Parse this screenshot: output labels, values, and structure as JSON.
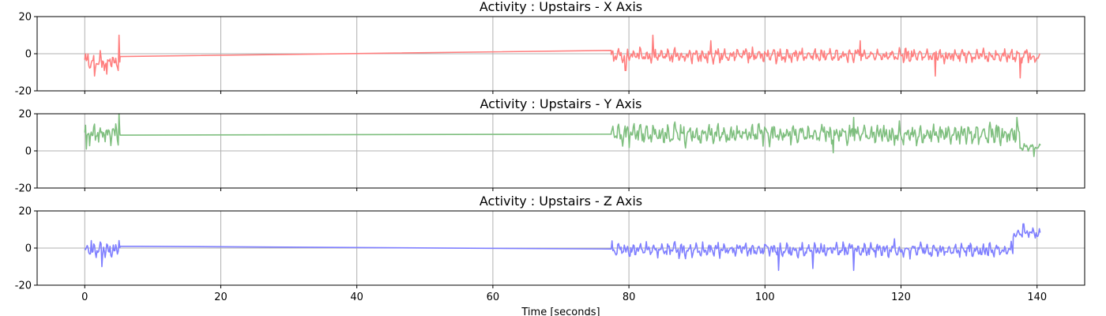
{
  "chart_data": [
    {
      "type": "line",
      "title": "Activity : Upstairs - X Axis",
      "xlabel": "",
      "ylabel": "",
      "xlim": [
        -7,
        147
      ],
      "ylim": [
        -20,
        20
      ],
      "xticks": [
        0,
        20,
        40,
        60,
        80,
        100,
        120,
        140
      ],
      "yticks": [
        -20,
        0,
        20
      ],
      "show_xtick_labels": false,
      "grid": true,
      "color": "#ff7f7f",
      "series": [
        {
          "segments": [
            {
              "x_start": 0,
              "x_end": 5.2,
              "center": -4,
              "amplitude": 6,
              "spikes": [
                [
                  5.0,
                  10
                ],
                [
                  3.2,
                  -11
                ],
                [
                  1.4,
                  -12
                ]
              ]
            },
            {
              "x_start": 5.2,
              "x_end": 77.4,
              "linear": [
                -1.5,
                1.8
              ]
            },
            {
              "x_start": 77.4,
              "x_end": 140.5,
              "center": -1,
              "amplitude": 4,
              "spikes": [
                [
                  83.5,
                  10
                ],
                [
                  92.0,
                  7
                ],
                [
                  79.5,
                  -9
                ],
                [
                  114.0,
                  7
                ],
                [
                  125.0,
                  -12
                ],
                [
                  137.5,
                  -13
                ]
              ],
              "tail_center": -3
            }
          ]
        }
      ]
    },
    {
      "type": "line",
      "title": "Activity : Upstairs - Y Axis",
      "xlabel": "",
      "ylabel": "",
      "xlim": [
        -7,
        147
      ],
      "ylim": [
        -20,
        20
      ],
      "xticks": [
        0,
        20,
        40,
        60,
        80,
        100,
        120,
        140
      ],
      "yticks": [
        -20,
        0,
        20
      ],
      "show_xtick_labels": false,
      "grid": true,
      "color": "#7fbf7f",
      "series": [
        {
          "segments": [
            {
              "x_start": 0,
              "x_end": 5.2,
              "center": 9,
              "amplitude": 6,
              "spikes": [
                [
                  5.0,
                  20
                ],
                [
                  0.2,
                  1
                ]
              ]
            },
            {
              "x_start": 5.2,
              "x_end": 77.4,
              "linear": [
                8.5,
                9.0
              ]
            },
            {
              "x_start": 77.4,
              "x_end": 137.5,
              "center": 9,
              "amplitude": 6,
              "spikes": [
                [
                  113.0,
                  18
                ],
                [
                  110.0,
                  -1
                ],
                [
                  137.0,
                  18
                ]
              ]
            },
            {
              "x_start": 137.5,
              "x_end": 140.5,
              "center": 2,
              "amplitude": 2,
              "spikes": [
                [
                  139.5,
                  -3
                ]
              ]
            }
          ]
        }
      ]
    },
    {
      "type": "line",
      "title": "Activity : Upstairs - Z Axis",
      "xlabel": "Time [seconds]",
      "ylabel": "",
      "xlim": [
        -7,
        147
      ],
      "ylim": [
        -20,
        20
      ],
      "xticks": [
        0,
        20,
        40,
        60,
        80,
        100,
        120,
        140
      ],
      "yticks": [
        -20,
        0,
        20
      ],
      "show_xtick_labels": true,
      "grid": true,
      "color": "#7f7fff",
      "series": [
        {
          "segments": [
            {
              "x_start": 0,
              "x_end": 5.2,
              "center": -1,
              "amplitude": 4,
              "spikes": [
                [
                  1.0,
                  4
                ],
                [
                  2.5,
                  -10
                ],
                [
                  5.0,
                  4
                ]
              ]
            },
            {
              "x_start": 5.2,
              "x_end": 77.4,
              "linear": [
                1.0,
                -0.5
              ]
            },
            {
              "x_start": 77.4,
              "x_end": 136.5,
              "center": -1,
              "amplitude": 4,
              "spikes": [
                [
                  119.0,
                  5
                ],
                [
                  102.0,
                  -12
                ],
                [
                  113.0,
                  -12
                ],
                [
                  107.0,
                  -11
                ]
              ]
            },
            {
              "x_start": 136.5,
              "x_end": 140.5,
              "center": 8,
              "amplitude": 3,
              "spikes": [
                [
                  138.0,
                  13
                ]
              ]
            }
          ]
        }
      ]
    }
  ]
}
